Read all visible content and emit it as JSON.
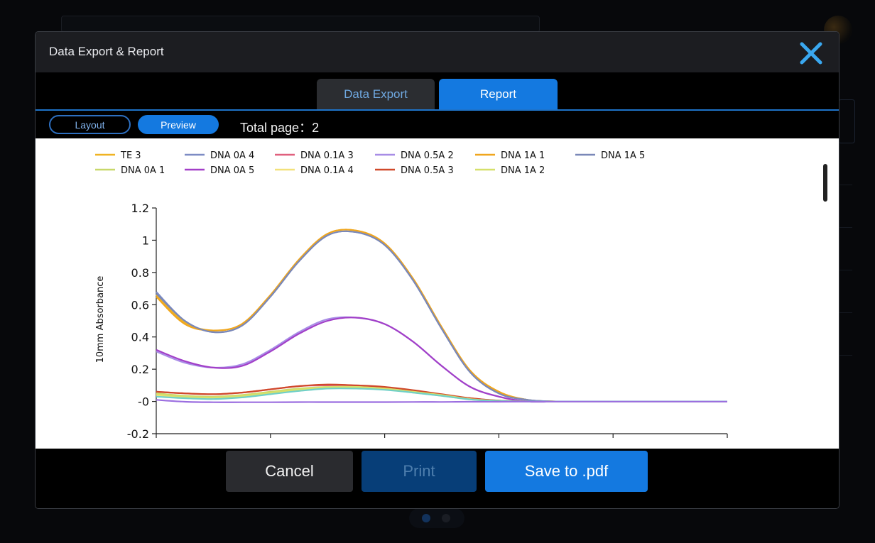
{
  "dialog": {
    "title": "Data Export & Report",
    "tabs": [
      {
        "label": "Data Export",
        "active": false
      },
      {
        "label": "Report",
        "active": true
      }
    ],
    "view_toggle": {
      "layout_label": "Layout",
      "preview_label": "Preview",
      "selected": "Preview"
    },
    "total_page_text": "Total page：2",
    "buttons": {
      "cancel": "Cancel",
      "print": "Print",
      "save": "Save to .pdf"
    },
    "close_icon": "close-icon"
  },
  "colors": {
    "accent": "#1479e0",
    "header_bg": "#1c1d21",
    "dialog_bg": "#000000",
    "print_disabled_bg": "#073e78"
  },
  "chart_data": {
    "type": "line",
    "title": "",
    "xlabel": "",
    "ylabel": "10mm Absorbance",
    "ylim": [
      -0.2,
      1.2
    ],
    "yticks": [
      {
        "value": 1.2,
        "label": "1.2"
      },
      {
        "value": 1.0,
        "label": "1"
      },
      {
        "value": 0.8,
        "label": "0.8"
      },
      {
        "value": 0.6,
        "label": "0.6"
      },
      {
        "value": 0.4,
        "label": "0.4"
      },
      {
        "value": 0.2,
        "label": "0.2"
      },
      {
        "value": 0.0,
        "label": "-0"
      },
      {
        "value": -0.2,
        "label": "-0.2"
      }
    ],
    "x_tick_count": 6,
    "x": [
      0,
      0.05,
      0.1,
      0.15,
      0.2,
      0.25,
      0.3,
      0.35,
      0.4,
      0.45,
      0.5,
      0.55,
      0.6,
      0.65,
      0.7,
      0.75,
      0.8,
      0.9,
      1.0
    ],
    "grid": false,
    "legend_position": "top",
    "series": [
      {
        "name": "TE 3",
        "color": "#f0b323",
        "values": [
          0.66,
          0.49,
          0.44,
          0.48,
          0.66,
          0.88,
          1.04,
          1.06,
          0.98,
          0.76,
          0.46,
          0.19,
          0.06,
          0.01,
          0.0,
          0.0,
          0.0,
          0.0,
          0.0
        ]
      },
      {
        "name": "DNA 0A 4",
        "color": "#7d8cc4",
        "values": [
          0.68,
          0.5,
          0.43,
          0.47,
          0.65,
          0.87,
          1.03,
          1.05,
          0.97,
          0.75,
          0.45,
          0.18,
          0.05,
          0.01,
          0.0,
          0.0,
          0.0,
          0.0,
          0.0
        ]
      },
      {
        "name": "DNA 0.1A 3",
        "color": "#e0607e",
        "values": [
          0.06,
          0.05,
          0.045,
          0.055,
          0.075,
          0.095,
          0.1,
          0.095,
          0.085,
          0.065,
          0.04,
          0.02,
          0.005,
          0.0,
          0.0,
          0.0,
          0.0,
          0.0,
          0.0
        ]
      },
      {
        "name": "DNA 0.5A 2",
        "color": "#a88de6",
        "values": [
          0.31,
          0.24,
          0.21,
          0.23,
          0.32,
          0.43,
          0.51,
          0.52,
          0.48,
          0.37,
          0.22,
          0.09,
          0.03,
          0.0,
          0.0,
          0.0,
          0.0,
          0.0,
          0.0
        ]
      },
      {
        "name": "DNA 1A 1",
        "color": "#f0a61e",
        "values": [
          0.65,
          0.48,
          0.44,
          0.48,
          0.66,
          0.88,
          1.04,
          1.06,
          0.98,
          0.76,
          0.46,
          0.19,
          0.06,
          0.01,
          0.0,
          0.0,
          0.0,
          0.0,
          0.0
        ]
      },
      {
        "name": "DNA 1A 5",
        "color": "#7a88b8",
        "values": [
          0.67,
          0.5,
          0.43,
          0.47,
          0.65,
          0.87,
          1.03,
          1.05,
          0.97,
          0.75,
          0.45,
          0.18,
          0.05,
          0.01,
          0.0,
          0.0,
          0.0,
          0.0,
          0.0
        ]
      },
      {
        "name": "DNA 0A 1",
        "color": "#c8d86a",
        "values": [
          0.05,
          0.035,
          0.03,
          0.04,
          0.06,
          0.08,
          0.09,
          0.09,
          0.08,
          0.06,
          0.04,
          0.015,
          0.005,
          0.0,
          0.0,
          0.0,
          0.0,
          0.0,
          0.0
        ]
      },
      {
        "name": "DNA 0A 5",
        "color": "#a23fc8",
        "values": [
          0.32,
          0.25,
          0.21,
          0.22,
          0.31,
          0.42,
          0.5,
          0.52,
          0.48,
          0.37,
          0.22,
          0.09,
          0.03,
          0.0,
          0.0,
          0.0,
          0.0,
          0.0,
          0.0
        ]
      },
      {
        "name": "DNA 0.1A 4",
        "color": "#f3e17a",
        "values": [
          0.04,
          0.025,
          0.02,
          0.03,
          0.05,
          0.07,
          0.085,
          0.085,
          0.075,
          0.055,
          0.035,
          0.012,
          0.003,
          0.0,
          0.0,
          0.0,
          0.0,
          0.0,
          0.0
        ]
      },
      {
        "name": "DNA 0.5A 3",
        "color": "#d0492a",
        "values": [
          0.06,
          0.05,
          0.045,
          0.055,
          0.075,
          0.095,
          0.105,
          0.1,
          0.09,
          0.07,
          0.045,
          0.02,
          0.005,
          0.0,
          0.0,
          0.0,
          0.0,
          0.0,
          0.0
        ]
      },
      {
        "name": "DNA 1A 2",
        "color": "#d6e06a",
        "values": [
          0.045,
          0.03,
          0.025,
          0.035,
          0.055,
          0.075,
          0.09,
          0.09,
          0.08,
          0.06,
          0.04,
          0.015,
          0.004,
          0.0,
          0.0,
          0.0,
          0.0,
          0.0,
          0.0
        ]
      },
      {
        "color": "#6fd0c8",
        "values": [
          0.03,
          0.02,
          0.015,
          0.025,
          0.045,
          0.065,
          0.08,
          0.08,
          0.072,
          0.055,
          0.035,
          0.012,
          0.003,
          0.0,
          0.0,
          0.0,
          0.0,
          0.0,
          0.0
        ]
      },
      {
        "color": "#9b6ee0",
        "values": [
          0.01,
          -0.002,
          -0.005,
          -0.005,
          -0.005,
          -0.004,
          -0.004,
          -0.004,
          -0.004,
          -0.003,
          -0.003,
          -0.002,
          -0.002,
          -0.001,
          -0.001,
          -0.001,
          -0.001,
          -0.001,
          -0.001
        ]
      }
    ]
  }
}
